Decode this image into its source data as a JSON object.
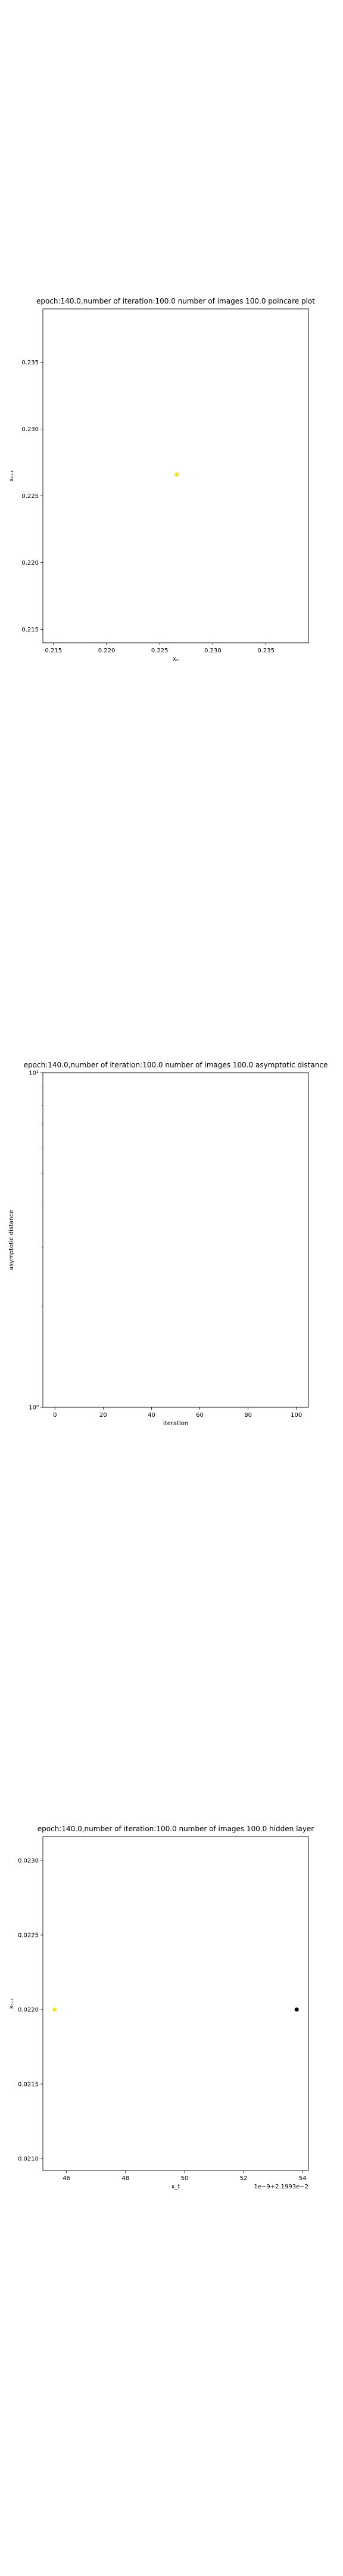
{
  "chart_data": [
    {
      "type": "scatter",
      "title": "epoch:140.0,number of iteration:100.0 number of images 100.0 poincare plot",
      "xlabel": "xₙ",
      "ylabel": "xₙ₊₁",
      "xlim": [
        0.214,
        0.239
      ],
      "ylim": [
        0.214,
        0.239
      ],
      "xticks": [
        0.215,
        0.22,
        0.225,
        0.23,
        0.235
      ],
      "xtick_labels": [
        "0.215",
        "0.220",
        "0.225",
        "0.230",
        "0.235"
      ],
      "yticks": [
        0.215,
        0.22,
        0.225,
        0.23,
        0.235
      ],
      "ytick_labels": [
        "0.215",
        "0.220",
        "0.225",
        "0.230",
        "0.235"
      ],
      "grid": false,
      "points": [
        {
          "x": 0.2266,
          "y": 0.2266,
          "color": "#f5e61f"
        }
      ]
    },
    {
      "type": "line",
      "title": "epoch:140.0,number of iteration:100.0  number of images 100.0 asymptotic distance",
      "xlabel": "iteration",
      "ylabel": "asymptotic distance",
      "yscale": "log",
      "xlim": [
        -5,
        105
      ],
      "ylim": [
        1,
        10
      ],
      "xticks": [
        0,
        20,
        40,
        60,
        80,
        100
      ],
      "xtick_labels": [
        "0",
        "20",
        "40",
        "60",
        "80",
        "100"
      ],
      "yticks": [
        1,
        10
      ],
      "ytick_labels": [
        "10⁰",
        "10¹"
      ],
      "grid": false,
      "series": []
    },
    {
      "type": "scatter",
      "title": "epoch:140.0,number of iteration:100.0  number of images 100.0 hidden layer",
      "xlabel": "x_t",
      "ylabel": "xₜ₊₁",
      "offset_label": "1e−9+2.1993e−2",
      "xlim": [
        45.2,
        54.2
      ],
      "ylim": [
        0.02092,
        0.02316
      ],
      "xticks": [
        46,
        48,
        50,
        52,
        54
      ],
      "xtick_labels": [
        "46",
        "48",
        "50",
        "52",
        "54"
      ],
      "yticks": [
        0.021,
        0.0215,
        0.022,
        0.0225,
        0.023
      ],
      "ytick_labels": [
        "0.0210",
        "0.0215",
        "0.0220",
        "0.0225",
        "0.0230"
      ],
      "grid": false,
      "points": [
        {
          "x": 45.6,
          "y": 0.022,
          "color": "#f5e61f"
        },
        {
          "x": 53.8,
          "y": 0.022,
          "color": "#000000"
        }
      ]
    }
  ]
}
